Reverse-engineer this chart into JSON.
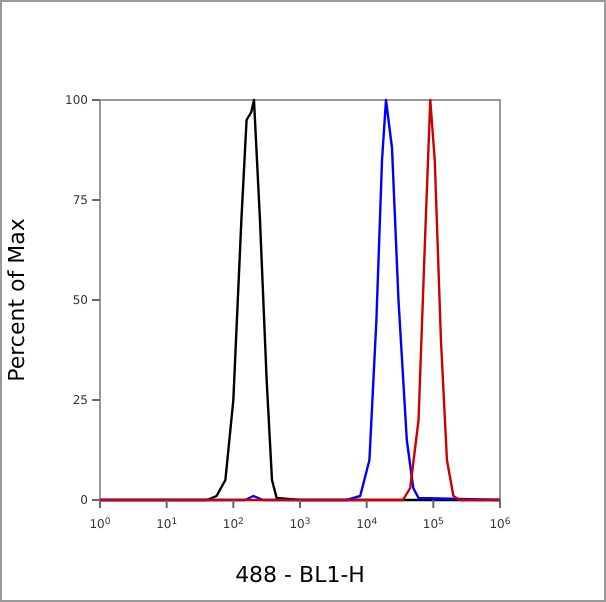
{
  "chart_data": {
    "type": "line",
    "xlabel": "488 - BL1-H",
    "ylabel": "Percent of Max",
    "log": "x",
    "xlim": [
      1,
      1000000
    ],
    "xticks": [
      {
        "value": 1,
        "label": "10$^{0}$"
      },
      {
        "value": 10,
        "label": "10$^{1}$"
      },
      {
        "value": 100,
        "label": "10$^{2}$"
      },
      {
        "value": 1000,
        "label": "10$^{3}$"
      },
      {
        "value": 10000,
        "label": "10$^{4}$"
      },
      {
        "value": 100000,
        "label": "10$^{5}$"
      },
      {
        "value": 1000000,
        "label": "10$^{6}$"
      }
    ],
    "ylim": [
      0,
      100
    ],
    "yticks": [
      0,
      25,
      50,
      75,
      100
    ],
    "grid": false,
    "marker": "none",
    "line_style": "solid",
    "series": [
      {
        "color": "#000000",
        "x": [
          1,
          40,
          56,
          76,
          100,
          132,
          158,
          186,
          204,
          251,
          316,
          380,
          447,
          1000,
          1000000
        ],
        "values": [
          0,
          0,
          1,
          5,
          25,
          70,
          95,
          97,
          100,
          70,
          30,
          5,
          0.5,
          0,
          0
        ]
      },
      {
        "color": "#0000ff",
        "x": [
          1,
          150,
          200,
          280,
          5000,
          8000,
          11000,
          14000,
          17000,
          19500,
          24000,
          30000,
          40000,
          50000,
          60000,
          1000000
        ],
        "values": [
          0,
          0,
          1,
          0,
          0,
          1,
          10,
          45,
          85,
          100,
          88,
          50,
          15,
          3,
          0.5,
          0
        ]
      },
      {
        "color": "#cc0000",
        "x": [
          1,
          35000,
          45000,
          60000,
          75000,
          90000,
          105000,
          130000,
          160000,
          200000,
          250000,
          1000000
        ],
        "values": [
          0,
          0,
          3,
          20,
          65,
          100,
          85,
          40,
          10,
          1,
          0,
          0
        ]
      }
    ]
  }
}
